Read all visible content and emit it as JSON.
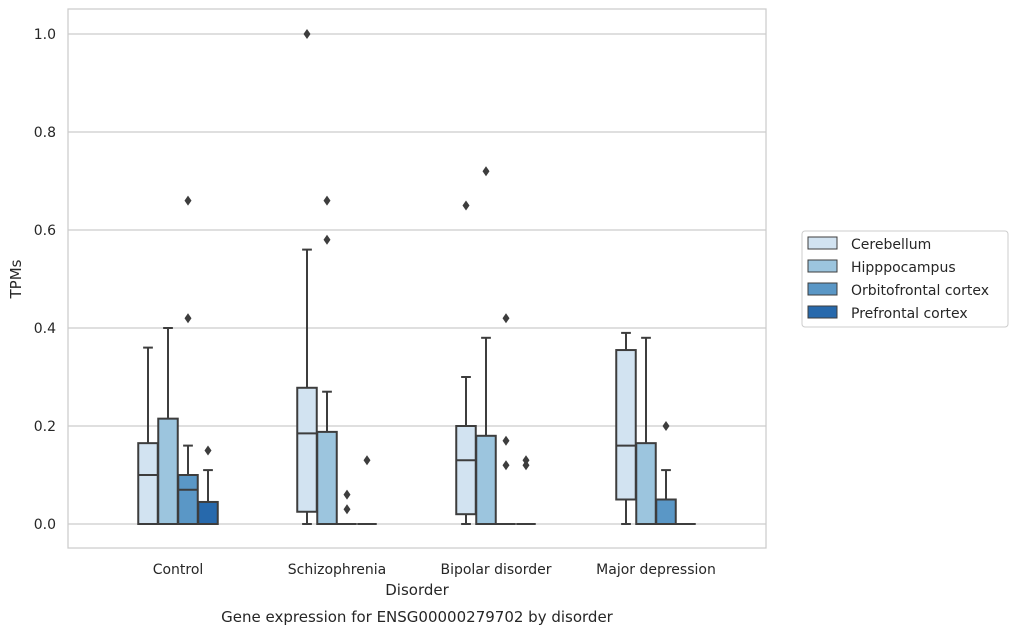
{
  "chart_data": {
    "type": "box",
    "title": "",
    "caption": "Gene expression for ENSG00000279702 by disorder",
    "xlabel": "Disorder",
    "ylabel": "TPMs",
    "ylim": [
      -0.05,
      1.05
    ],
    "yticks": [
      "0.0",
      "0.2",
      "0.4",
      "0.6",
      "0.8",
      "1.0"
    ],
    "categories": [
      "Control",
      "Schizophrenia",
      "Bipolar disorder",
      "Major depression"
    ],
    "grid": "horizontal",
    "legend_position": "right",
    "series": [
      {
        "name": "Cerebellum",
        "color": "#d2e3f1",
        "boxes": [
          {
            "min": 0,
            "q1": 0,
            "median": 0.1,
            "q3": 0.165,
            "max": 0.36,
            "outliers": []
          },
          {
            "min": 0,
            "q1": 0.025,
            "median": 0.185,
            "q3": 0.278,
            "max": 0.56,
            "outliers": [
              1.0
            ]
          },
          {
            "min": 0,
            "q1": 0.02,
            "median": 0.13,
            "q3": 0.2,
            "max": 0.3,
            "outliers": [
              0.65
            ]
          },
          {
            "min": 0,
            "q1": 0.05,
            "median": 0.16,
            "q3": 0.355,
            "max": 0.39,
            "outliers": []
          }
        ]
      },
      {
        "name": "Hipppocampus",
        "color": "#9cc5de",
        "boxes": [
          {
            "min": 0,
            "q1": 0,
            "median": 0,
            "q3": 0.215,
            "max": 0.4,
            "outliers": []
          },
          {
            "min": 0,
            "q1": 0,
            "median": 0,
            "q3": 0.188,
            "max": 0.27,
            "outliers": [
              0.66,
              0.58
            ]
          },
          {
            "min": 0,
            "q1": 0,
            "median": 0,
            "q3": 0.18,
            "max": 0.38,
            "outliers": [
              0.72
            ]
          },
          {
            "min": 0,
            "q1": 0,
            "median": 0,
            "q3": 0.165,
            "max": 0.38,
            "outliers": []
          }
        ]
      },
      {
        "name": "Orbitofrontal cortex",
        "color": "#5a97c6",
        "boxes": [
          {
            "min": 0,
            "q1": 0,
            "median": 0.07,
            "q3": 0.1,
            "max": 0.16,
            "outliers": [
              0.66,
              0.42
            ]
          },
          {
            "min": 0,
            "q1": 0,
            "median": 0,
            "q3": 0,
            "max": 0,
            "outliers": [
              0.06,
              0.03
            ]
          },
          {
            "min": 0,
            "q1": 0,
            "median": 0,
            "q3": 0,
            "max": 0,
            "outliers": [
              0.42,
              0.17,
              0.12
            ]
          },
          {
            "min": 0,
            "q1": 0,
            "median": 0,
            "q3": 0.05,
            "max": 0.11,
            "outliers": [
              0.2
            ]
          }
        ]
      },
      {
        "name": "Prefrontal cortex",
        "color": "#2769ac",
        "boxes": [
          {
            "min": 0,
            "q1": 0,
            "median": 0,
            "q3": 0.045,
            "max": 0.11,
            "outliers": [
              0.15
            ]
          },
          {
            "min": 0,
            "q1": 0,
            "median": 0,
            "q3": 0,
            "max": 0,
            "outliers": [
              0.13
            ]
          },
          {
            "min": 0,
            "q1": 0,
            "median": 0,
            "q3": 0,
            "max": 0,
            "outliers": [
              0.13,
              0.12
            ]
          },
          {
            "min": 0,
            "q1": 0,
            "median": 0,
            "q3": 0,
            "max": 0,
            "outliers": []
          }
        ]
      }
    ]
  }
}
